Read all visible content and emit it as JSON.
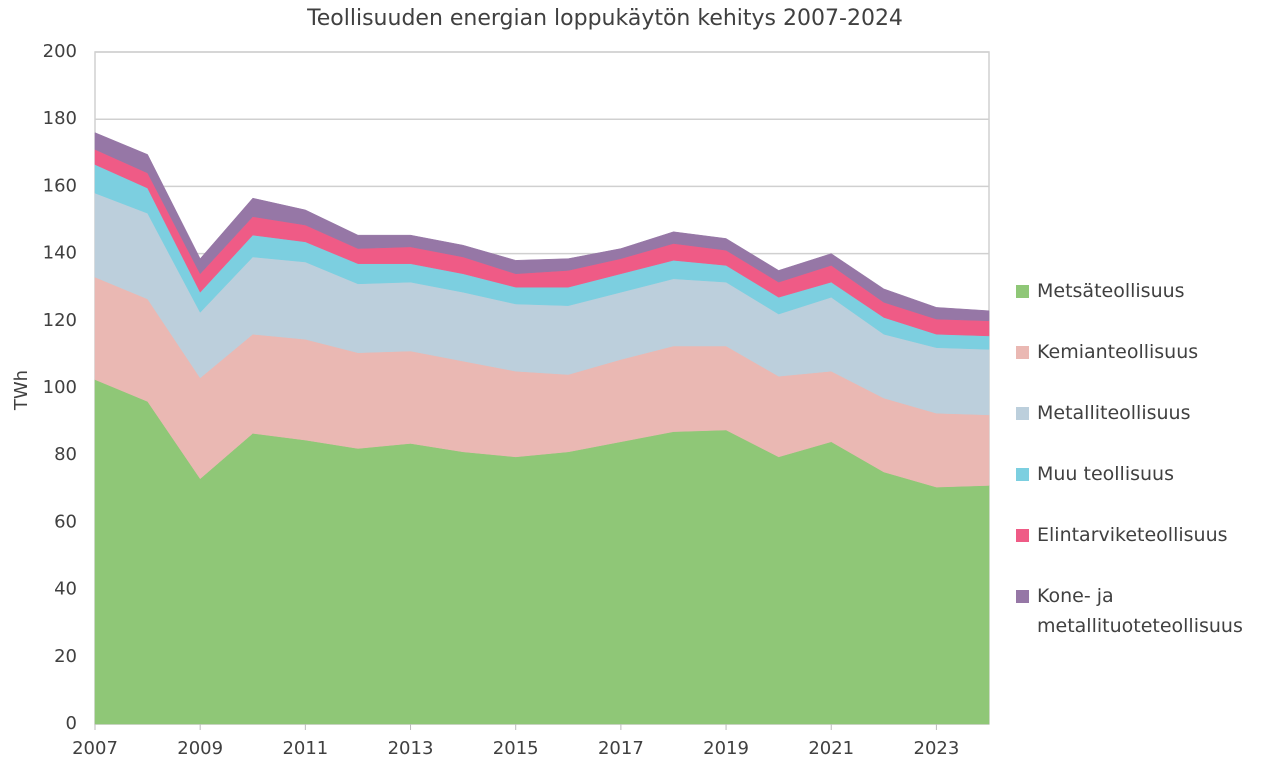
{
  "chart_data": {
    "type": "stacked-area",
    "title": "Teollisuuden energian loppukäytön kehitys 2007-2024",
    "y_label": "TWh",
    "x": [
      2007,
      2008,
      2009,
      2010,
      2011,
      2012,
      2013,
      2014,
      2015,
      2016,
      2017,
      2018,
      2019,
      2020,
      2021,
      2022,
      2023,
      2024
    ],
    "xlim": [
      2007,
      2024
    ],
    "xticks": [
      2007,
      2009,
      2011,
      2013,
      2015,
      2017,
      2019,
      2021,
      2023
    ],
    "ylim": [
      0,
      200
    ],
    "yticks": [
      0,
      20,
      40,
      60,
      80,
      100,
      120,
      140,
      160,
      180,
      200
    ],
    "grid": true,
    "series": [
      {
        "name": "Metsäteollisuus",
        "color": "#8fc777",
        "values": [
          102.5,
          96,
          73,
          86.5,
          84.5,
          82,
          83.5,
          81,
          79.5,
          81,
          84,
          87,
          87.5,
          79.5,
          84,
          75,
          70.5,
          71
        ]
      },
      {
        "name": "Kemianteollisuus",
        "color": "#eab8b3",
        "values": [
          30.5,
          30.5,
          30,
          29.5,
          30,
          28.5,
          27.5,
          27,
          25.5,
          23,
          24.5,
          25.5,
          25,
          24,
          21,
          22,
          22,
          21
        ]
      },
      {
        "name": "Metalliteollisuus",
        "color": "#bccfdc",
        "values": [
          25,
          25.5,
          19.5,
          23,
          23,
          20.5,
          20.5,
          20.5,
          20,
          20.5,
          20,
          20,
          19,
          18.5,
          22,
          19,
          19.5,
          19.5
        ]
      },
      {
        "name": "Muu teollisuus",
        "color": "#7ccfe0",
        "values": [
          8.5,
          7.5,
          6,
          6.5,
          6,
          6,
          5.5,
          5.5,
          5,
          5.5,
          5.5,
          5.5,
          5,
          5,
          4.5,
          5,
          4,
          4
        ]
      },
      {
        "name": "Elintarviketeollisuus",
        "color": "#ef5b86",
        "values": [
          4.5,
          4.5,
          5.5,
          5.5,
          5,
          4.5,
          5,
          5,
          4,
          5,
          4.5,
          5,
          4.5,
          4.5,
          5,
          4.5,
          4.5,
          4.5
        ]
      },
      {
        "name": "Kone- ja metallituoteteollisuus",
        "color": "#9677a6",
        "values": [
          5,
          5.5,
          4.5,
          5.5,
          4.5,
          4,
          3.5,
          3.5,
          4,
          3.5,
          3,
          3.5,
          3.5,
          3.5,
          3.5,
          4,
          3.5,
          3
        ]
      }
    ]
  }
}
